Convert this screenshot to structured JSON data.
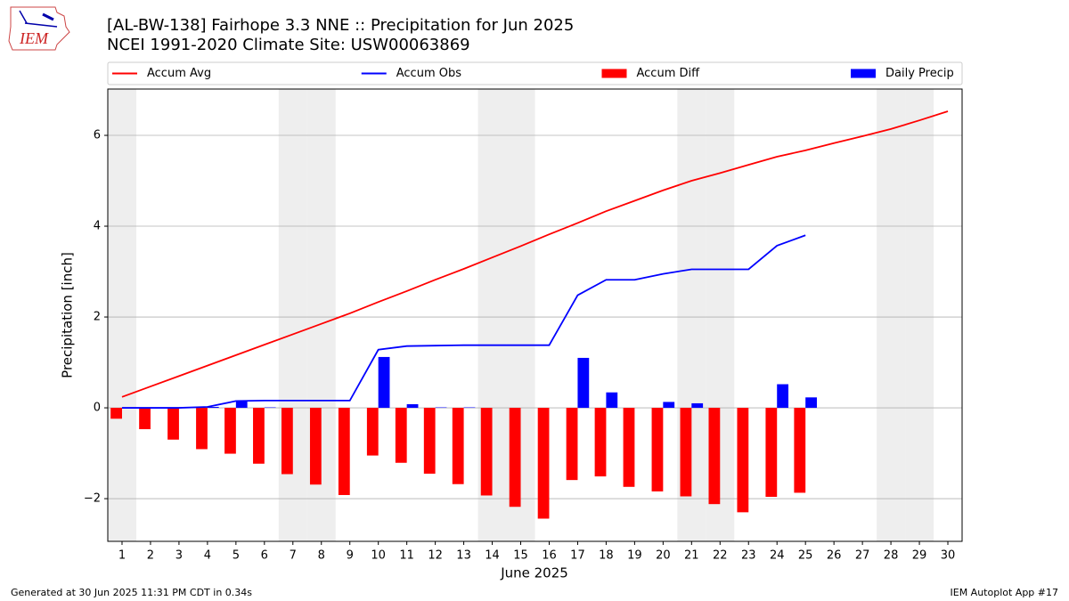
{
  "chart_data": {
    "type": "combo",
    "logo_text": "IEM",
    "title": "[AL-BW-138] Fairhope 3.3 NNE :: Precipitation for Jun 2025",
    "subtitle": "NCEI 1991-2020 Climate Site: USW00063869",
    "xlabel": "June 2025",
    "ylabel": "Precipitation [inch]",
    "footer_left": "Generated at 30 Jun 2025 11:31 PM CDT in 0.34s",
    "footer_right": "IEM Autoplot App #17",
    "x": [
      1,
      2,
      3,
      4,
      5,
      6,
      7,
      8,
      9,
      10,
      11,
      12,
      13,
      14,
      15,
      16,
      17,
      18,
      19,
      20,
      21,
      22,
      23,
      24,
      25,
      26,
      27,
      28,
      29,
      30
    ],
    "xlim": [
      0.5,
      30.5
    ],
    "xticks": [
      1,
      2,
      3,
      4,
      5,
      6,
      7,
      8,
      9,
      10,
      11,
      12,
      13,
      14,
      15,
      16,
      17,
      18,
      19,
      20,
      21,
      22,
      23,
      24,
      25,
      26,
      27,
      28,
      29,
      30
    ],
    "ylim": [
      -2.94,
      7.02
    ],
    "yticks": [
      {
        "value": -2,
        "label": "−2"
      },
      0,
      2,
      4,
      6
    ],
    "grid": true,
    "shaded_days": [
      1,
      7,
      8,
      14,
      15,
      21,
      22,
      28,
      29
    ],
    "shade_color": "#eeeeee",
    "series": [
      {
        "name": "Accum Avg",
        "type": "line",
        "color": "#ff0000",
        "values": [
          0.24,
          0.47,
          0.7,
          0.93,
          1.16,
          1.39,
          1.62,
          1.85,
          2.08,
          2.33,
          2.57,
          2.82,
          3.06,
          3.31,
          3.56,
          3.82,
          4.07,
          4.33,
          4.56,
          4.79,
          5.0,
          5.17,
          5.35,
          5.53,
          5.67,
          5.83,
          5.98,
          6.14,
          6.33,
          6.53
        ]
      },
      {
        "name": "Accum Obs",
        "type": "line",
        "color": "#0000ff",
        "values": [
          0,
          0,
          0,
          0.02,
          0.15,
          0.16,
          0.16,
          0.16,
          0.16,
          1.28,
          1.36,
          1.37,
          1.38,
          1.38,
          1.38,
          1.38,
          2.48,
          2.82,
          2.82,
          2.95,
          3.05,
          3.05,
          3.05,
          3.57,
          3.8,
          null,
          null,
          null,
          null,
          null
        ]
      },
      {
        "name": "Accum Diff",
        "type": "bar",
        "color": "#ff0000",
        "values": [
          -0.24,
          -0.47,
          -0.7,
          -0.91,
          -1.01,
          -1.23,
          -1.46,
          -1.69,
          -1.92,
          -1.05,
          -1.21,
          -1.45,
          -1.68,
          -1.93,
          -2.18,
          -2.44,
          -1.59,
          -1.51,
          -1.74,
          -1.84,
          -1.95,
          -2.12,
          -2.3,
          -1.96,
          -1.87,
          null,
          null,
          null,
          null,
          null
        ]
      },
      {
        "name": "Daily Precip",
        "type": "bar",
        "color": "#0000ff",
        "values": [
          0,
          0,
          0,
          0.02,
          0.14,
          0.01,
          0,
          0,
          0,
          1.12,
          0.08,
          0.01,
          0.01,
          0,
          0,
          0,
          1.1,
          0.34,
          0,
          0.13,
          0.1,
          0,
          0,
          0.52,
          0.23,
          null,
          null,
          null,
          null,
          null
        ]
      }
    ]
  }
}
